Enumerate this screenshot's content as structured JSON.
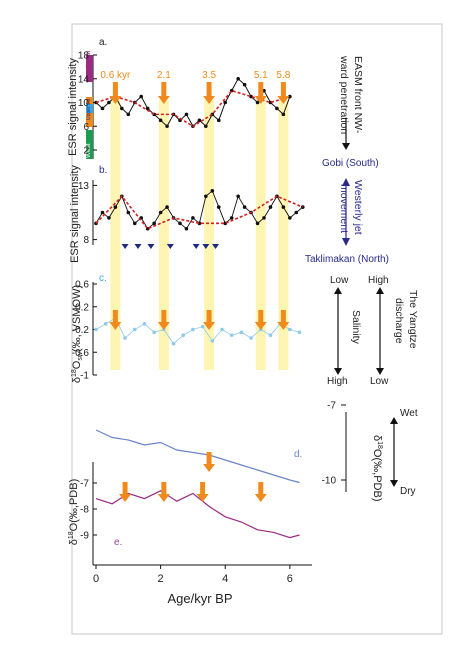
{
  "colors": {
    "black": "#111111",
    "red": "#d42020",
    "orange": "#f08a1c",
    "yellow": "#fff3a6",
    "skyblue": "#8fcbe8",
    "purple": "#9a2b82",
    "blue": "#6a86c8",
    "navy": "#2a2a8a",
    "darkblue": "#1c2a80",
    "magenta": "#9b3f95",
    "lightblue": "#3aa6e0",
    "green": "#1d9b50"
  },
  "x_axis": {
    "label": "Age/kyr BP",
    "ticks": [
      "0",
      "2",
      "4",
      "6"
    ]
  },
  "panel_a": {
    "letter": "a.",
    "ylabel": "ESR signal intensity",
    "ticks": [
      "18",
      "14",
      "10",
      "6",
      "2"
    ],
    "source_bar": [
      "Southeast",
      "Upper Jiu",
      "West"
    ],
    "events": [
      {
        "label": "0.6 kyr",
        "age": 0.6
      },
      {
        "label": "2.1",
        "age": 2.1
      },
      {
        "label": "3.5",
        "age": 3.5
      },
      {
        "label": "5.1",
        "age": 5.1
      },
      {
        "label": "5.8",
        "age": 5.8
      }
    ],
    "right_label_1": "EASM front NW-",
    "right_label_2": "ward penetration",
    "gobi": "Gobi (South)"
  },
  "panel_b": {
    "letter": "b.",
    "ylabel": "ESR signal intensity",
    "ticks": [
      "13",
      "8"
    ],
    "right_label_1": "Westerly jet",
    "right_label_2": "movement",
    "taklimakan": "Taklimakan (North)"
  },
  "panel_c": {
    "letter": "c.",
    "ylabel_main": "δ",
    "ylabel_sup": "18",
    "ylabel_rest": "O",
    "ylabel_sub": "sw",
    "ylabel_end": "(‰, VSMOW)",
    "ticks": [
      "-1",
      "-0.6",
      "-0.2",
      "0.2",
      "0.6"
    ],
    "salinity": "Salinity",
    "low": "Low",
    "high": "High",
    "yangtze_1": "The Yangtze",
    "yangtze_2": "discharge",
    "high2": "High",
    "low2": "Low"
  },
  "panel_d": {
    "letter": "d.",
    "ticks": [
      "-10",
      "-7"
    ],
    "ylabel_main": "δ",
    "ylabel_sup": "18",
    "ylabel_rest": "O(‰,PDB)",
    "wet": "Wet",
    "dry": "Dry"
  },
  "panel_e": {
    "letter": "e.",
    "ticks": [
      "-9",
      "-8",
      "-7"
    ],
    "ylabel_main": "δ",
    "ylabel_sup": "18",
    "ylabel_rest": "O(‰,PDB)"
  },
  "chart_data": {
    "type": "line",
    "xlabel": "Age/kyr BP",
    "xlim": [
      0,
      6.5
    ],
    "x_ticks": [
      0,
      2,
      4,
      6
    ],
    "shaded_bands_kyr": [
      0.6,
      2.1,
      3.5,
      5.1,
      5.8
    ],
    "panels": [
      {
        "id": "a",
        "ylabel": "ESR signal intensity",
        "ylim": [
          2,
          18
        ],
        "y_ticks": [
          18,
          14,
          10,
          6,
          2
        ],
        "x": [
          0.0,
          0.2,
          0.4,
          0.6,
          0.8,
          1.0,
          1.2,
          1.4,
          1.6,
          1.8,
          2.0,
          2.2,
          2.4,
          2.6,
          2.8,
          3.0,
          3.2,
          3.4,
          3.6,
          3.8,
          4.0,
          4.2,
          4.4,
          4.6,
          4.8,
          5.0,
          5.2,
          5.4,
          5.6,
          5.8,
          6.0
        ],
        "y": [
          10,
          9,
          10,
          11,
          9,
          8,
          10,
          11,
          9,
          8,
          7,
          6,
          8,
          7,
          8,
          6,
          7,
          6,
          8,
          7,
          10,
          12,
          14,
          13,
          11,
          10,
          12,
          10,
          9,
          8,
          11
        ]
      },
      {
        "id": "b",
        "ylabel": "ESR signal intensity",
        "ylim": [
          7.5,
          13.5
        ],
        "y_ticks": [
          13,
          8
        ],
        "x": [
          0.0,
          0.2,
          0.4,
          0.6,
          0.8,
          1.0,
          1.2,
          1.4,
          1.6,
          1.8,
          2.0,
          2.2,
          2.4,
          2.6,
          2.8,
          3.0,
          3.2,
          3.4,
          3.6,
          3.8,
          4.0,
          4.2,
          4.4,
          4.6,
          4.8,
          5.0,
          5.2,
          5.4,
          5.6,
          5.8,
          6.0,
          6.2,
          6.4
        ],
        "y": [
          9.5,
          10.5,
          10,
          11,
          12,
          10.5,
          9.5,
          10,
          9,
          9.5,
          10.5,
          11,
          10,
          9.5,
          9,
          10,
          9.5,
          12,
          12.5,
          11,
          9.5,
          10,
          12,
          11,
          10.5,
          9.5,
          10,
          11,
          12,
          11,
          10,
          10.5,
          11
        ]
      },
      {
        "id": "c",
        "ylabel": "δ18Osw(‰, VSMOW)",
        "ylim": [
          -1,
          0.6
        ],
        "y_ticks": [
          -1,
          -0.6,
          -0.2,
          0.2,
          0.6
        ],
        "x": [
          0.0,
          0.3,
          0.6,
          0.9,
          1.2,
          1.5,
          1.8,
          2.1,
          2.4,
          2.7,
          3.0,
          3.3,
          3.6,
          3.9,
          4.2,
          4.5,
          4.8,
          5.1,
          5.4,
          5.7,
          6.0,
          6.3
        ],
        "y": [
          -0.2,
          -0.1,
          0.0,
          -0.35,
          -0.2,
          -0.1,
          -0.25,
          -0.2,
          -0.45,
          -0.3,
          -0.2,
          -0.15,
          -0.4,
          -0.2,
          -0.3,
          -0.25,
          -0.35,
          -0.2,
          -0.3,
          -0.1,
          -0.2,
          -0.25
        ]
      },
      {
        "id": "d",
        "ylabel": "δ18O(‰,PDB)",
        "ylim": [
          -10,
          -7
        ],
        "y_ticks": [
          -10,
          -7
        ],
        "x": [
          0.0,
          0.5,
          1.0,
          1.5,
          2.0,
          2.5,
          3.0,
          3.5,
          4.0,
          4.5,
          5.0,
          5.5,
          6.0,
          6.3
        ],
        "y": [
          -8.0,
          -8.3,
          -8.4,
          -8.6,
          -8.5,
          -8.8,
          -8.9,
          -9.0,
          -9.2,
          -9.4,
          -9.6,
          -9.8,
          -10.0,
          -10.1
        ]
      },
      {
        "id": "e",
        "ylabel": "δ18O(‰,PDB)",
        "ylim": [
          -9.5,
          -6.5
        ],
        "y_ticks": [
          -9,
          -8,
          -7
        ],
        "x": [
          0.0,
          0.5,
          1.0,
          1.5,
          2.0,
          2.5,
          3.0,
          3.5,
          4.0,
          4.5,
          5.0,
          5.5,
          6.0,
          6.3
        ],
        "y": [
          -7.6,
          -7.8,
          -7.4,
          -7.6,
          -7.3,
          -7.7,
          -7.4,
          -7.9,
          -8.3,
          -8.5,
          -8.8,
          -8.9,
          -9.1,
          -9.0
        ]
      }
    ]
  }
}
